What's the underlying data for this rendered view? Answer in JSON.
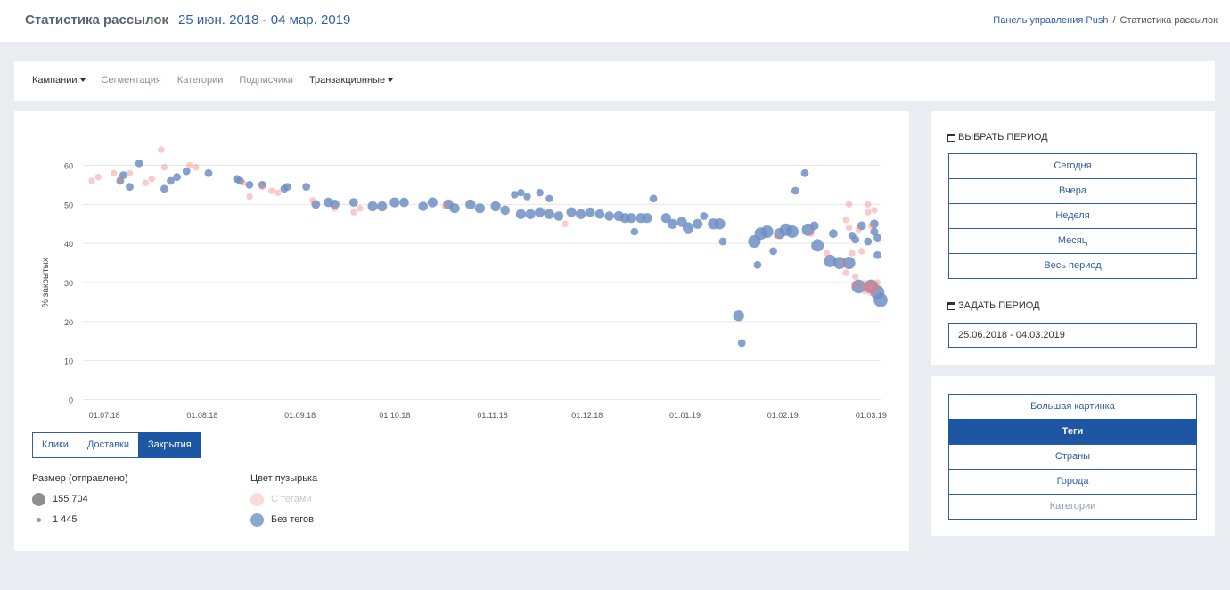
{
  "header": {
    "title": "Статистика рассылок",
    "period": "25 июн. 2018 - 04 мар. 2019",
    "breadcrumb": {
      "parent": "Панель управления Push",
      "separator": "/",
      "current": "Статистика рассылок"
    }
  },
  "nav": {
    "items": [
      {
        "label": "Кампании",
        "dropdown": true,
        "style": "dark"
      },
      {
        "label": "Сегментация",
        "dropdown": false,
        "style": "muted"
      },
      {
        "label": "Категории",
        "dropdown": false,
        "style": "muted"
      },
      {
        "label": "Подписчики",
        "dropdown": false,
        "style": "muted"
      },
      {
        "label": "Транзакционные",
        "dropdown": true,
        "style": "dark"
      }
    ]
  },
  "metric_tabs": [
    {
      "label": "Клики",
      "active": false
    },
    {
      "label": "Доставки",
      "active": false
    },
    {
      "label": "Закрытия",
      "active": true
    }
  ],
  "legend": {
    "size_title": "Размер (отправлено)",
    "size_max": "155 704",
    "size_min": "1 445",
    "color_title": "Цвет пузырька",
    "tagged": "С тегами",
    "untagged": "Без тегов"
  },
  "colors": {
    "accent": "#1d56a3",
    "link": "#2f5ea8",
    "tagged": "#f08080",
    "untagged": "#6f8fc4"
  },
  "period_panel": {
    "choose_title": "ВЫБРАТЬ ПЕРИОД",
    "presets": [
      "Сегодня",
      "Вчера",
      "Неделя",
      "Месяц",
      "Весь период"
    ],
    "custom_title": "ЗАДАТЬ ПЕРИОД",
    "date_range": "25.06.2018 - 04.03.2019"
  },
  "view_panel": {
    "items": [
      {
        "label": "Большая картинка",
        "active": false,
        "muted": false
      },
      {
        "label": "Теги",
        "active": true,
        "muted": false
      },
      {
        "label": "Страны",
        "active": false,
        "muted": false
      },
      {
        "label": "Города",
        "active": false,
        "muted": false
      },
      {
        "label": "Категории",
        "active": false,
        "muted": true
      }
    ]
  },
  "chart_data": {
    "type": "scatter",
    "title": "",
    "xlabel": "",
    "ylabel": "% закрытых",
    "ylim": [
      0,
      60
    ],
    "yticks": [
      0,
      10,
      20,
      30,
      40,
      50,
      60
    ],
    "xlim": [
      "2018-06-27",
      "2019-03-04"
    ],
    "xticks": [
      "01.07.18",
      "01.08.18",
      "01.09.18",
      "01.10.18",
      "01.11.18",
      "01.12.18",
      "01.01.19",
      "01.02.19",
      "01.03.19"
    ],
    "xtick_dates": [
      "2018-07-01",
      "2018-08-01",
      "2018-09-01",
      "2018-10-01",
      "2018-11-01",
      "2018-12-01",
      "2019-01-01",
      "2019-02-01",
      "2019-03-01"
    ],
    "grid": true,
    "size_unit": "отправлено",
    "series": [
      {
        "name": "Без тегов",
        "points": [
          [
            "2018-07-06",
            56,
            6000
          ],
          [
            "2018-07-07",
            57.5,
            6000
          ],
          [
            "2018-07-09",
            54.5,
            6000
          ],
          [
            "2018-07-12",
            60.5,
            6000
          ],
          [
            "2018-07-20",
            54,
            6000
          ],
          [
            "2018-07-22",
            56,
            6000
          ],
          [
            "2018-07-24",
            57,
            6000
          ],
          [
            "2018-07-27",
            58.5,
            6000
          ],
          [
            "2018-08-03",
            58,
            6000
          ],
          [
            "2018-08-12",
            56.5,
            6000
          ],
          [
            "2018-08-13",
            56,
            6000
          ],
          [
            "2018-08-16",
            55,
            6000
          ],
          [
            "2018-08-20",
            55,
            6000
          ],
          [
            "2018-08-27",
            54,
            6000
          ],
          [
            "2018-08-28",
            54.5,
            6000
          ],
          [
            "2018-09-03",
            54.5,
            6000
          ],
          [
            "2018-09-06",
            50,
            9000
          ],
          [
            "2018-09-10",
            50.5,
            12000
          ],
          [
            "2018-09-12",
            50,
            12000
          ],
          [
            "2018-09-18",
            50.5,
            9000
          ],
          [
            "2018-09-24",
            49.5,
            15000
          ],
          [
            "2018-09-27",
            49.5,
            15000
          ],
          [
            "2018-10-01",
            50.5,
            15000
          ],
          [
            "2018-10-04",
            50.5,
            12000
          ],
          [
            "2018-10-10",
            49.5,
            12000
          ],
          [
            "2018-10-13",
            50.5,
            15000
          ],
          [
            "2018-10-18",
            50,
            15000
          ],
          [
            "2018-10-20",
            49,
            15000
          ],
          [
            "2018-10-25",
            50,
            15000
          ],
          [
            "2018-10-28",
            49,
            15000
          ],
          [
            "2018-11-02",
            49.5,
            15000
          ],
          [
            "2018-11-05",
            48.5,
            12000
          ],
          [
            "2018-11-08",
            52.5,
            5000
          ],
          [
            "2018-11-10",
            53,
            5000
          ],
          [
            "2018-11-12",
            52,
            5000
          ],
          [
            "2018-11-16",
            53,
            5000
          ],
          [
            "2018-11-19",
            51.5,
            5000
          ],
          [
            "2018-11-10",
            47.5,
            15000
          ],
          [
            "2018-11-13",
            47.5,
            15000
          ],
          [
            "2018-11-16",
            48,
            15000
          ],
          [
            "2018-11-19",
            47.5,
            15000
          ],
          [
            "2018-11-22",
            47,
            12000
          ],
          [
            "2018-11-26",
            48,
            15000
          ],
          [
            "2018-11-29",
            47.5,
            15000
          ],
          [
            "2018-12-02",
            48,
            12000
          ],
          [
            "2018-12-05",
            47.5,
            12000
          ],
          [
            "2018-12-08",
            47,
            12000
          ],
          [
            "2018-12-11",
            47,
            15000
          ],
          [
            "2018-12-13",
            46.5,
            15000
          ],
          [
            "2018-12-15",
            46.5,
            15000
          ],
          [
            "2018-12-16",
            43,
            5000
          ],
          [
            "2018-12-18",
            46.5,
            15000
          ],
          [
            "2018-12-20",
            46.5,
            15000
          ],
          [
            "2018-12-22",
            51.5,
            6000
          ],
          [
            "2018-12-26",
            46.5,
            15000
          ],
          [
            "2018-12-28",
            45,
            15000
          ],
          [
            "2018-12-31",
            45.5,
            15000
          ],
          [
            "2019-01-02",
            44,
            20000
          ],
          [
            "2019-01-05",
            45,
            15000
          ],
          [
            "2019-01-07",
            47,
            6000
          ],
          [
            "2019-01-10",
            45,
            20000
          ],
          [
            "2019-01-12",
            45,
            20000
          ],
          [
            "2019-01-13",
            40.5,
            6000
          ],
          [
            "2019-01-18",
            21.5,
            20000
          ],
          [
            "2019-01-19",
            14.5,
            6000
          ],
          [
            "2019-01-23",
            40.5,
            30000
          ],
          [
            "2019-01-24",
            34.5,
            6000
          ],
          [
            "2019-01-25",
            42.5,
            30000
          ],
          [
            "2019-01-27",
            43,
            30000
          ],
          [
            "2019-01-29",
            38,
            6000
          ],
          [
            "2019-01-31",
            42.5,
            20000
          ],
          [
            "2019-02-02",
            43.5,
            30000
          ],
          [
            "2019-02-04",
            43,
            30000
          ],
          [
            "2019-02-05",
            53.5,
            6000
          ],
          [
            "2019-02-08",
            58,
            6000
          ],
          [
            "2019-02-09",
            43.5,
            30000
          ],
          [
            "2019-02-11",
            44.5,
            9000
          ],
          [
            "2019-02-12",
            39.5,
            30000
          ],
          [
            "2019-02-16",
            35.5,
            30000
          ],
          [
            "2019-02-17",
            42.5,
            9000
          ],
          [
            "2019-02-19",
            35,
            30000
          ],
          [
            "2019-02-22",
            35,
            30000
          ],
          [
            "2019-02-23",
            42,
            6000
          ],
          [
            "2019-02-24",
            41,
            6000
          ],
          [
            "2019-02-26",
            44.5,
            9000
          ],
          [
            "2019-02-28",
            40.5,
            6000
          ],
          [
            "2019-02-25",
            29,
            40000
          ],
          [
            "2019-03-01",
            29,
            40000
          ],
          [
            "2019-03-02",
            43,
            6000
          ],
          [
            "2019-03-02",
            45,
            9000
          ],
          [
            "2019-03-03",
            41.5,
            6000
          ],
          [
            "2019-03-03",
            27.5,
            40000
          ],
          [
            "2019-03-03",
            37,
            6000
          ],
          [
            "2019-03-04",
            25.5,
            40000
          ]
        ]
      },
      {
        "name": "С тегами",
        "points": [
          [
            "2018-06-27",
            56,
            3000
          ],
          [
            "2018-06-29",
            57,
            3000
          ],
          [
            "2018-07-04",
            58,
            3000
          ],
          [
            "2018-07-06",
            56.5,
            3000
          ],
          [
            "2018-07-09",
            58,
            3000
          ],
          [
            "2018-07-14",
            55.5,
            3000
          ],
          [
            "2018-07-16",
            56.5,
            3000
          ],
          [
            "2018-07-19",
            64,
            3000
          ],
          [
            "2018-07-20",
            59.5,
            3000
          ],
          [
            "2018-07-28",
            60,
            3000
          ],
          [
            "2018-07-30",
            59.5,
            3000
          ],
          [
            "2018-08-14",
            55.5,
            3000
          ],
          [
            "2018-08-16",
            52,
            3000
          ],
          [
            "2018-08-20",
            54.5,
            3000
          ],
          [
            "2018-08-23",
            53.5,
            3000
          ],
          [
            "2018-08-25",
            53,
            3000
          ],
          [
            "2018-09-05",
            51,
            3000
          ],
          [
            "2018-09-12",
            49,
            3000
          ],
          [
            "2018-09-18",
            48,
            3000
          ],
          [
            "2018-09-20",
            49,
            3000
          ],
          [
            "2018-10-17",
            49.5,
            3000
          ],
          [
            "2018-11-24",
            45,
            3000
          ],
          [
            "2019-01-30",
            42,
            3000
          ],
          [
            "2019-02-10",
            42.5,
            3000
          ],
          [
            "2019-02-15",
            37.5,
            3000
          ],
          [
            "2019-02-20",
            35,
            3000
          ],
          [
            "2019-02-21",
            32.5,
            3000
          ],
          [
            "2019-02-21",
            46,
            3000
          ],
          [
            "2019-02-22",
            50,
            3000
          ],
          [
            "2019-02-22",
            44,
            3000
          ],
          [
            "2019-02-23",
            37.5,
            3000
          ],
          [
            "2019-02-24",
            31.5,
            3000
          ],
          [
            "2019-02-25",
            43.5,
            3000
          ],
          [
            "2019-02-26",
            38,
            3000
          ],
          [
            "2019-02-27",
            28,
            6000
          ],
          [
            "2019-02-28",
            48,
            3000
          ],
          [
            "2019-02-28",
            50,
            3000
          ],
          [
            "2019-03-01",
            44.5,
            3000
          ],
          [
            "2019-03-01",
            27.5,
            6000
          ],
          [
            "2019-03-02",
            48.5,
            3000
          ],
          [
            "2019-03-02",
            28.5,
            6000
          ],
          [
            "2019-03-03",
            30,
            3000
          ],
          [
            "2019-03-02",
            29,
            9000
          ],
          [
            "2019-03-01",
            29.5,
            9000
          ],
          [
            "2019-02-27",
            29.5,
            9000
          ],
          [
            "2019-02-28",
            28.5,
            9000
          ],
          [
            "2019-02-24",
            29.5,
            6000
          ]
        ]
      }
    ]
  }
}
